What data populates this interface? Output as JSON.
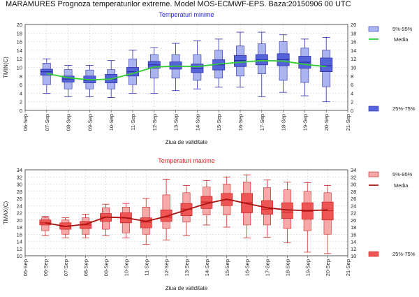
{
  "header": {
    "title": "MARAMURES  Prognoza temperaturilor extreme.  Model MOS-ECMWF-EPS. Baza:20150906 00 UTC"
  },
  "chart_data": [
    {
      "type": "box",
      "title": "Temperaturi minime",
      "title_color": "#2222cc",
      "ylabel": "TMIN(C)",
      "xlabel": "Ziua de validitate",
      "ylim": [
        0,
        20
      ],
      "yticks": [
        0,
        2,
        4,
        6,
        8,
        10,
        12,
        14,
        16,
        18,
        20
      ],
      "x_tick_labels": [
        "06-Sep",
        "07-Sep",
        "08-Sep",
        "09-Sep",
        "10-Sep",
        "11-Sep",
        "12-Sep",
        "13-Sep",
        "14-Sep",
        "15-Sep",
        "16-Sep",
        "17-Sep",
        "18-Sep",
        "19-Sep",
        "20-Sep",
        "21-Sep"
      ],
      "days": [
        "07-Sep",
        "08-Sep",
        "09-Sep",
        "10-Sep",
        "11-Sep",
        "12-Sep",
        "13-Sep",
        "14-Sep",
        "15-Sep",
        "16-Sep",
        "17-Sep",
        "18-Sep",
        "19-Sep",
        "20-Sep"
      ],
      "boxes": [
        {
          "min": 4.0,
          "p5": 6.0,
          "p25": 8.2,
          "median": 9.0,
          "p75": 9.6,
          "p95": 11.0,
          "max": 12.0
        },
        {
          "min": 3.2,
          "p5": 5.0,
          "p25": 6.6,
          "median": 7.3,
          "p75": 8.0,
          "p95": 9.5,
          "max": 10.5
        },
        {
          "min": 3.2,
          "p5": 5.0,
          "p25": 6.4,
          "median": 7.0,
          "p75": 8.0,
          "p95": 9.4,
          "max": 10.5
        },
        {
          "min": 3.0,
          "p5": 5.0,
          "p25": 6.4,
          "median": 7.3,
          "p75": 8.4,
          "p95": 9.5,
          "max": 11.6
        },
        {
          "min": 4.0,
          "p5": 6.0,
          "p25": 8.0,
          "median": 9.0,
          "p75": 10.0,
          "p95": 12.0,
          "max": 14.0
        },
        {
          "min": 4.0,
          "p5": 7.5,
          "p25": 9.8,
          "median": 10.6,
          "p75": 11.4,
          "p95": 13.0,
          "max": 14.6
        },
        {
          "min": 4.6,
          "p5": 7.5,
          "p25": 9.6,
          "median": 10.2,
          "p75": 11.3,
          "p95": 13.0,
          "max": 15.6
        },
        {
          "min": 5.0,
          "p5": 7.0,
          "p25": 8.8,
          "median": 9.8,
          "p75": 10.8,
          "p95": 13.0,
          "max": 16.2
        },
        {
          "min": 5.4,
          "p5": 7.5,
          "p25": 9.4,
          "median": 10.6,
          "p75": 11.8,
          "p95": 14.0,
          "max": 16.6
        },
        {
          "min": 5.4,
          "p5": 8.0,
          "p25": 10.2,
          "median": 11.6,
          "p75": 12.8,
          "p95": 15.0,
          "max": 18.2
        },
        {
          "min": 3.2,
          "p5": 8.5,
          "p25": 10.6,
          "median": 11.8,
          "p75": 13.0,
          "p95": 15.5,
          "max": 18.2
        },
        {
          "min": 4.2,
          "p5": 7.0,
          "p25": 10.4,
          "median": 11.8,
          "p75": 13.2,
          "p95": 16.0,
          "max": 17.6
        },
        {
          "min": 3.4,
          "p5": 6.5,
          "p25": 9.8,
          "median": 11.2,
          "p75": 12.6,
          "p95": 14.5,
          "max": 16.6
        },
        {
          "min": 2.0,
          "p5": 5.5,
          "p25": 9.0,
          "median": 10.4,
          "p75": 12.2,
          "p95": 14.0,
          "max": 17.0
        }
      ],
      "mean_series": [
        8.6,
        7.6,
        7.1,
        7.3,
        8.6,
        10.1,
        10.3,
        10.2,
        10.8,
        11.2,
        11.6,
        11.5,
        10.7,
        10.2
      ],
      "legend": {
        "range_5_95": "5%-95%",
        "mean": "Media",
        "range_25_75": "25%-75%"
      },
      "colors": {
        "box_light": "#aab4ee",
        "box_dark": "#5563d8",
        "box_edge": "#2a2aaa",
        "mean_line": "#33cc33"
      }
    },
    {
      "type": "box",
      "title": "Temperaturi maxime",
      "title_color": "#dd2222",
      "ylabel": "TMAX(C)",
      "xlabel": "Ziua de validitate",
      "ylim": [
        10,
        34
      ],
      "yticks": [
        10,
        12,
        14,
        16,
        18,
        20,
        22,
        24,
        26,
        28,
        30,
        32,
        34
      ],
      "x_tick_labels": [
        "05-Sep",
        "06-Sep",
        "07-Sep",
        "08-Sep",
        "09-Sep",
        "10-Sep",
        "11-Sep",
        "12-Sep",
        "13-Sep",
        "14-Sep",
        "15-Sep",
        "16-Sep",
        "17-Sep",
        "18-Sep",
        "19-Sep",
        "20-Sep",
        "21-Sep"
      ],
      "days": [
        "06-Sep",
        "07-Sep",
        "08-Sep",
        "09-Sep",
        "10-Sep",
        "11-Sep",
        "12-Sep",
        "13-Sep",
        "14-Sep",
        "15-Sep",
        "16-Sep",
        "17-Sep",
        "18-Sep",
        "19-Sep",
        "20-Sep"
      ],
      "boxes": [
        {
          "min": 15.6,
          "p5": 17.0,
          "p25": 18.6,
          "median": 19.2,
          "p75": 20.0,
          "p95": 20.6,
          "max": 21.0
        },
        {
          "min": 15.0,
          "p5": 16.0,
          "p25": 17.4,
          "median": 18.2,
          "p75": 19.2,
          "p95": 20.0,
          "max": 20.6
        },
        {
          "min": 15.0,
          "p5": 16.0,
          "p25": 17.6,
          "median": 18.6,
          "p75": 19.6,
          "p95": 20.6,
          "max": 21.6
        },
        {
          "min": 15.6,
          "p5": 17.4,
          "p25": 19.6,
          "median": 20.8,
          "p75": 21.8,
          "p95": 23.4,
          "max": 24.4
        },
        {
          "min": 15.0,
          "p5": 16.4,
          "p25": 19.2,
          "median": 20.6,
          "p75": 22.0,
          "p95": 23.6,
          "max": 24.6
        },
        {
          "min": 13.2,
          "p5": 16.0,
          "p25": 17.8,
          "median": 19.4,
          "p75": 20.6,
          "p95": 23.6,
          "max": 26.0
        },
        {
          "min": 14.4,
          "p5": 17.6,
          "p25": 19.6,
          "median": 20.8,
          "p75": 22.8,
          "p95": 27.0,
          "max": 31.4
        },
        {
          "min": 15.6,
          "p5": 19.4,
          "p25": 21.2,
          "median": 23.0,
          "p75": 24.6,
          "p95": 27.6,
          "max": 29.6
        },
        {
          "min": 18.6,
          "p5": 21.4,
          "p25": 23.2,
          "median": 25.0,
          "p75": 26.6,
          "p95": 29.2,
          "max": 31.0
        },
        {
          "min": 18.0,
          "p5": 21.4,
          "p25": 24.0,
          "median": 25.6,
          "p75": 27.4,
          "p95": 30.0,
          "max": 32.0
        },
        {
          "min": 15.0,
          "p5": 18.6,
          "p25": 22.0,
          "median": 24.8,
          "p75": 27.4,
          "p95": 30.6,
          "max": 32.6
        },
        {
          "min": 15.2,
          "p5": 18.6,
          "p25": 21.6,
          "median": 23.0,
          "p75": 25.4,
          "p95": 29.0,
          "max": 31.2
        },
        {
          "min": 13.6,
          "p5": 17.6,
          "p25": 20.4,
          "median": 22.2,
          "p75": 24.8,
          "p95": 28.4,
          "max": 30.6
        },
        {
          "min": 11.0,
          "p5": 17.0,
          "p25": 20.2,
          "median": 22.4,
          "p75": 24.8,
          "p95": 28.0,
          "max": 30.4
        },
        {
          "min": 10.6,
          "p5": 16.0,
          "p25": 20.0,
          "median": 22.6,
          "p75": 25.0,
          "p95": 27.6,
          "max": 29.6
        }
      ],
      "mean_series": [
        19.2,
        18.2,
        18.8,
        20.8,
        20.6,
        19.6,
        21.0,
        22.8,
        24.6,
        25.8,
        24.6,
        23.4,
        22.8,
        22.6,
        22.8
      ],
      "legend": {
        "range_5_95": "5%-95%",
        "mean": "Media",
        "range_25_75": "25%-75%"
      },
      "colors": {
        "box_light": "#f5a9a9",
        "box_dark": "#ee5555",
        "box_edge": "#cc2222",
        "mean_line": "#aa1111"
      }
    }
  ]
}
